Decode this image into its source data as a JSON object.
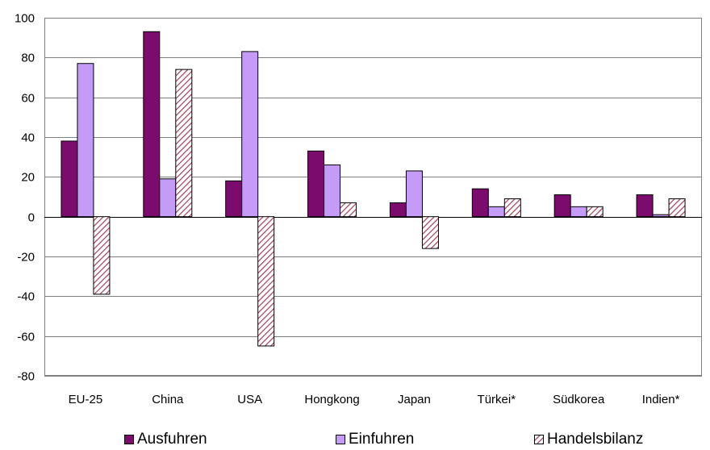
{
  "chart_data": {
    "type": "bar",
    "categories": [
      "EU-25",
      "China",
      "USA",
      "Hongkong",
      "Japan",
      "Türkei*",
      "Südkorea",
      "Indien*"
    ],
    "series": [
      {
        "name": "Ausfuhren",
        "values": [
          38,
          93,
          18,
          33,
          7,
          14,
          11,
          11
        ],
        "color": "#7b0c6e",
        "pattern": "solid"
      },
      {
        "name": "Einfuhren",
        "values": [
          77,
          19,
          83,
          26,
          23,
          5,
          5,
          1
        ],
        "color": "#c49cf7",
        "pattern": "solid"
      },
      {
        "name": "Handelsbilanz",
        "values": [
          -39,
          74,
          -65,
          7,
          -16,
          9,
          5,
          9
        ],
        "color": "#a0405a",
        "pattern": "hatch"
      }
    ],
    "ylim": [
      -80,
      100
    ],
    "yticks": [
      100,
      80,
      60,
      40,
      20,
      0,
      -20,
      -40,
      -60,
      -80
    ],
    "grid": true,
    "legend_position": "bottom"
  }
}
